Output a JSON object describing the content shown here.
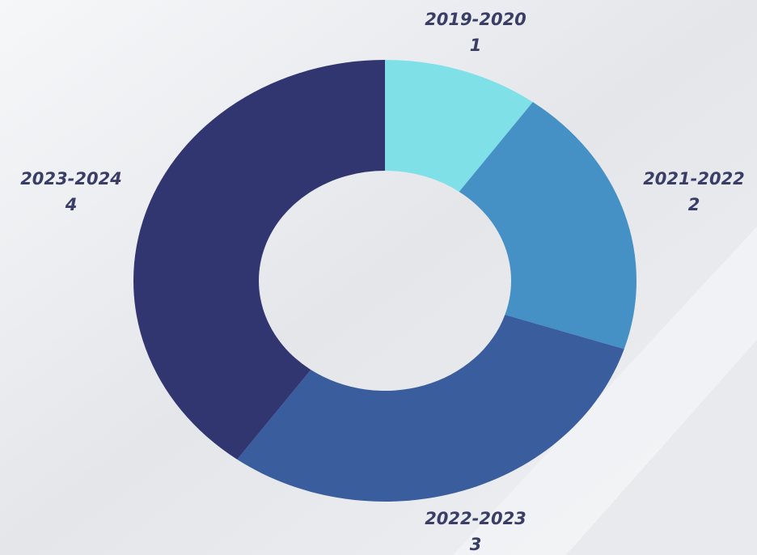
{
  "chart_data": {
    "type": "donut",
    "categories": [
      "2019-2020",
      "2021-2022",
      "2022-2023",
      "2023-2024"
    ],
    "values": [
      1,
      2,
      3,
      4
    ],
    "colors": [
      "#7fe1e7",
      "#4590c4",
      "#3a5d9d",
      "#313570"
    ]
  }
}
